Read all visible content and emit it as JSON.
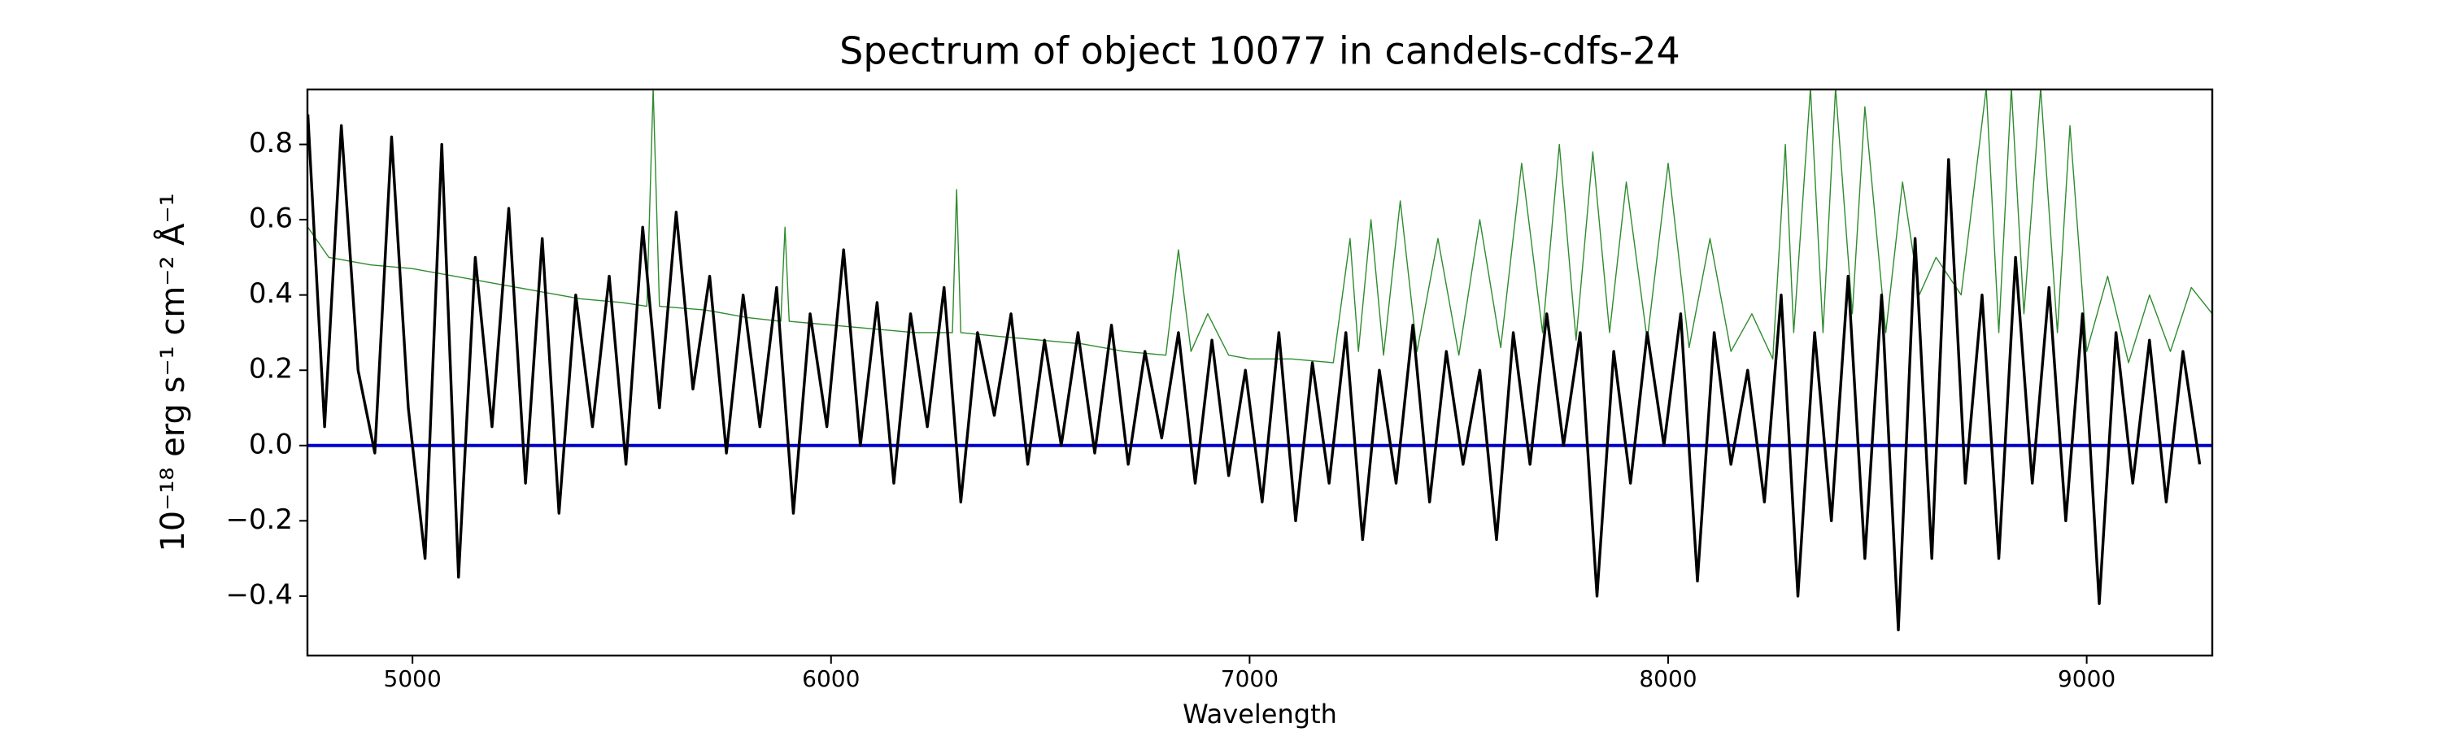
{
  "chart_data": {
    "type": "line",
    "title": "Spectrum of object 10077 in candels-cdfs-24",
    "x_label": "Wavelength",
    "y_label": "10⁻¹⁸ erg s⁻¹ cm⁻² Å⁻¹",
    "xlim": [
      4749,
      9300
    ],
    "ylim": [
      -0.558,
      0.946
    ],
    "xticks": [
      5000,
      6000,
      7000,
      8000,
      9000
    ],
    "yticks": [
      {
        "value": -0.4,
        "label": "−0.4"
      },
      {
        "value": -0.2,
        "label": "−0.2"
      },
      {
        "value": 0,
        "label": "0.0"
      },
      0.2,
      0.4,
      0.6,
      0.8
    ],
    "grid": false,
    "series": [
      {
        "color": "#2e8b2e",
        "width": 1.4,
        "x": [
          4750,
          4800,
          4900,
          5000,
          5100,
          5200,
          5300,
          5400,
          5500,
          5560,
          5575,
          5590,
          5700,
          5800,
          5880,
          5890,
          5900,
          6000,
          6100,
          6200,
          6290,
          6300,
          6310,
          6400,
          6500,
          6600,
          6700,
          6800,
          6830,
          6860,
          6900,
          6950,
          7000,
          7100,
          7200,
          7240,
          7260,
          7290,
          7320,
          7360,
          7400,
          7450,
          7500,
          7550,
          7600,
          7650,
          7700,
          7740,
          7780,
          7820,
          7860,
          7900,
          7950,
          8000,
          8050,
          8100,
          8150,
          8200,
          8250,
          8280,
          8300,
          8340,
          8370,
          8400,
          8440,
          8470,
          8520,
          8560,
          8600,
          8640,
          8700,
          8760,
          8790,
          8820,
          8850,
          8890,
          8930,
          8960,
          9000,
          9050,
          9100,
          9150,
          9200,
          9250,
          9300
        ],
        "values": [
          0.58,
          0.5,
          0.48,
          0.47,
          0.45,
          0.43,
          0.41,
          0.39,
          0.38,
          0.37,
          0.95,
          0.37,
          0.36,
          0.34,
          0.33,
          0.58,
          0.33,
          0.32,
          0.31,
          0.3,
          0.3,
          0.68,
          0.3,
          0.29,
          0.28,
          0.27,
          0.25,
          0.24,
          0.52,
          0.25,
          0.35,
          0.24,
          0.23,
          0.23,
          0.22,
          0.55,
          0.25,
          0.6,
          0.24,
          0.65,
          0.25,
          0.55,
          0.24,
          0.6,
          0.26,
          0.75,
          0.3,
          0.8,
          0.28,
          0.78,
          0.3,
          0.7,
          0.28,
          0.75,
          0.26,
          0.55,
          0.25,
          0.35,
          0.23,
          0.8,
          0.3,
          0.95,
          0.3,
          0.95,
          0.35,
          0.9,
          0.3,
          0.7,
          0.4,
          0.5,
          0.4,
          0.95,
          0.3,
          0.95,
          0.35,
          0.95,
          0.3,
          0.85,
          0.25,
          0.45,
          0.22,
          0.4,
          0.25,
          0.42,
          0.35
        ]
      },
      {
        "color": "#0000cc",
        "width": 4,
        "x": [
          4750,
          9300
        ],
        "values": [
          0,
          0
        ]
      },
      {
        "color": "#000000",
        "width": 3.4,
        "x": [
          4750,
          4790,
          4830,
          4870,
          4910,
          4950,
          4990,
          5030,
          5070,
          5110,
          5150,
          5190,
          5230,
          5270,
          5310,
          5350,
          5390,
          5430,
          5470,
          5510,
          5550,
          5590,
          5630,
          5670,
          5710,
          5750,
          5790,
          5830,
          5870,
          5910,
          5950,
          5990,
          6030,
          6070,
          6110,
          6150,
          6190,
          6230,
          6270,
          6310,
          6350,
          6390,
          6430,
          6470,
          6510,
          6550,
          6590,
          6630,
          6670,
          6710,
          6750,
          6790,
          6830,
          6870,
          6910,
          6950,
          6990,
          7030,
          7070,
          7110,
          7150,
          7190,
          7230,
          7270,
          7310,
          7350,
          7390,
          7430,
          7470,
          7510,
          7550,
          7590,
          7630,
          7670,
          7710,
          7750,
          7790,
          7830,
          7870,
          7910,
          7950,
          7990,
          8030,
          8070,
          8110,
          8150,
          8190,
          8230,
          8270,
          8310,
          8350,
          8390,
          8430,
          8470,
          8510,
          8550,
          8590,
          8630,
          8670,
          8710,
          8750,
          8790,
          8830,
          8870,
          8910,
          8950,
          8990,
          9030,
          9070,
          9110,
          9150,
          9190,
          9230,
          9270
        ],
        "values": [
          0.88,
          0.05,
          0.85,
          0.2,
          -0.02,
          0.82,
          0.1,
          -0.3,
          0.8,
          -0.35,
          0.5,
          0.05,
          0.63,
          -0.1,
          0.55,
          -0.18,
          0.4,
          0.05,
          0.45,
          -0.05,
          0.58,
          0.1,
          0.62,
          0.15,
          0.45,
          -0.02,
          0.4,
          0.05,
          0.42,
          -0.18,
          0.35,
          0.05,
          0.52,
          0.0,
          0.38,
          -0.1,
          0.35,
          0.05,
          0.42,
          -0.15,
          0.3,
          0.08,
          0.35,
          -0.05,
          0.28,
          0.0,
          0.3,
          -0.02,
          0.32,
          -0.05,
          0.25,
          0.02,
          0.3,
          -0.1,
          0.28,
          -0.08,
          0.2,
          -0.15,
          0.3,
          -0.2,
          0.22,
          -0.1,
          0.3,
          -0.25,
          0.2,
          -0.1,
          0.32,
          -0.15,
          0.25,
          -0.05,
          0.2,
          -0.25,
          0.3,
          -0.05,
          0.35,
          0.0,
          0.3,
          -0.4,
          0.25,
          -0.1,
          0.3,
          0.0,
          0.35,
          -0.36,
          0.3,
          -0.05,
          0.2,
          -0.15,
          0.4,
          -0.4,
          0.3,
          -0.2,
          0.45,
          -0.3,
          0.4,
          -0.49,
          0.55,
          -0.3,
          0.76,
          -0.1,
          0.4,
          -0.3,
          0.5,
          -0.1,
          0.42,
          -0.2,
          0.35,
          -0.42,
          0.3,
          -0.1,
          0.28,
          -0.15,
          0.25,
          -0.05
        ]
      }
    ]
  }
}
